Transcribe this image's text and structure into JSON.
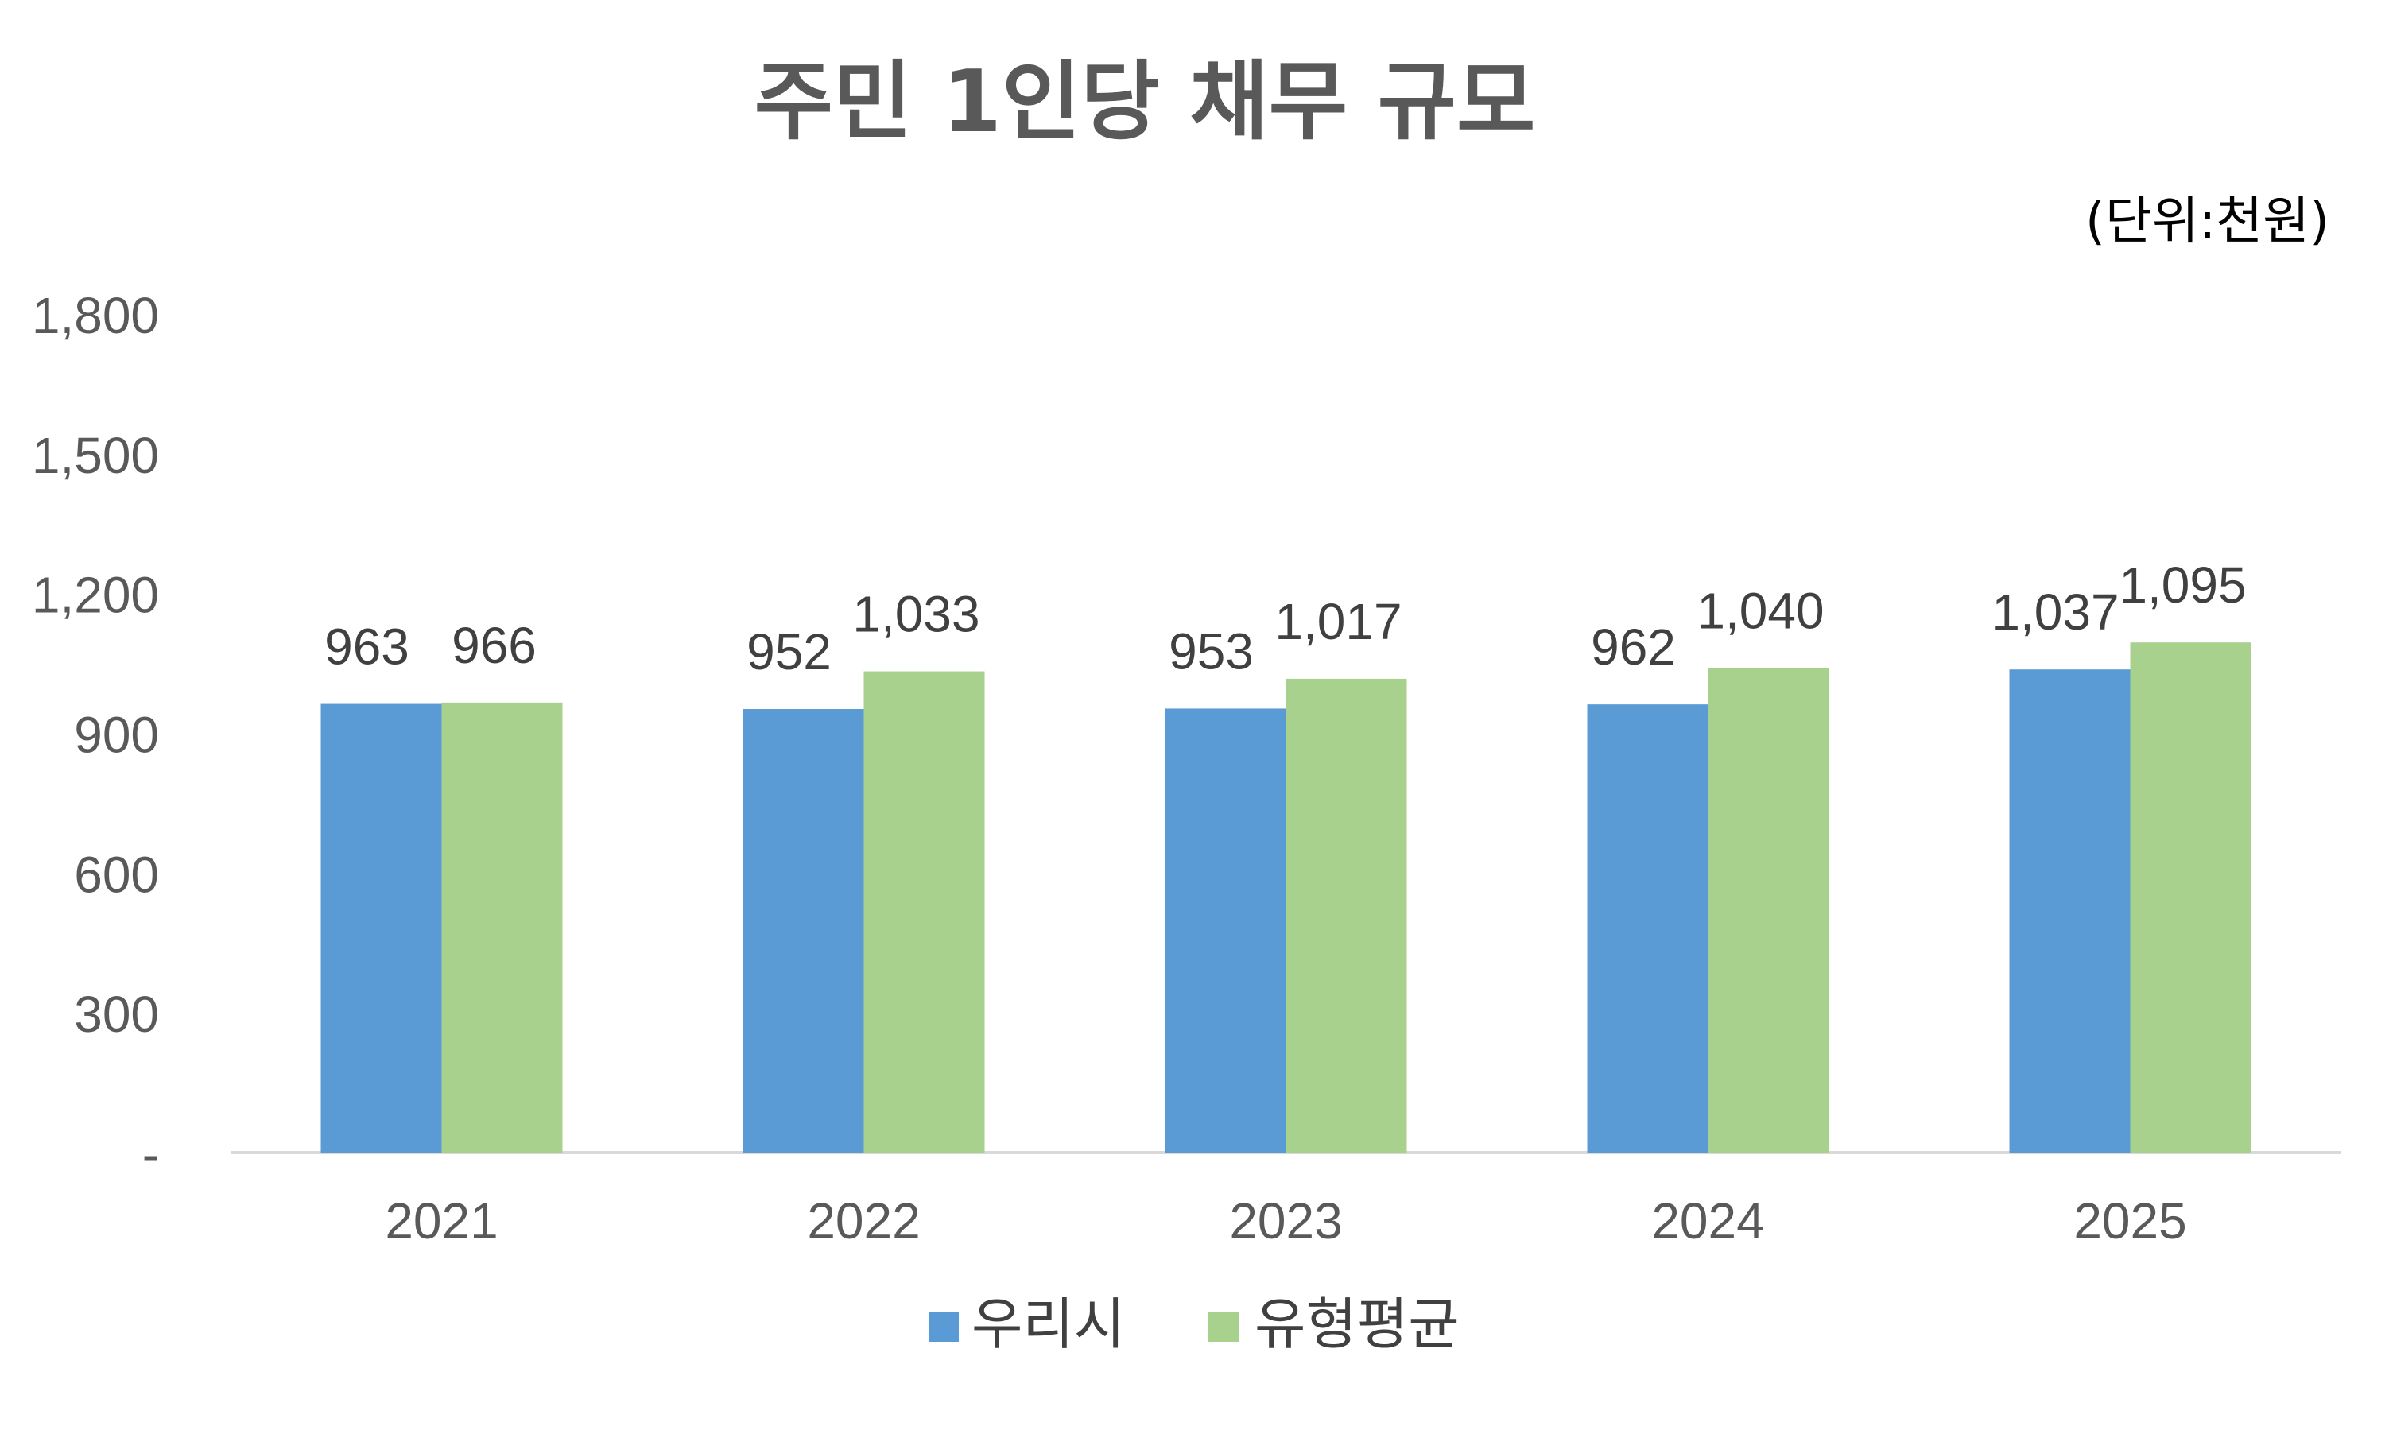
{
  "chart_data": {
    "type": "bar",
    "title": "주민 1인당 채무 규모",
    "unit_note": "(단위:천원)",
    "categories": [
      "2021",
      "2022",
      "2023",
      "2024",
      "2025"
    ],
    "series": [
      {
        "name": "우리시",
        "color": "#5B9BD5",
        "values": [
          963,
          952,
          953,
          962,
          1037
        ],
        "value_labels": [
          "963",
          "952",
          "953",
          "962",
          "1,037"
        ]
      },
      {
        "name": "유형평균",
        "color": "#A9D18E",
        "values": [
          966,
          1033,
          1017,
          1040,
          1095
        ],
        "value_labels": [
          "966",
          "1,033",
          "1,017",
          "1,040",
          "1,095"
        ]
      }
    ],
    "ylim": [
      0,
      1800
    ],
    "y_ticks": [
      0,
      300,
      600,
      900,
      1200,
      1500,
      1800
    ],
    "y_tick_labels": [
      "-",
      "300",
      "600",
      "900",
      "1,200",
      "1,500",
      "1,800"
    ],
    "xlabel": "",
    "ylabel": "",
    "grid": false,
    "legend_position": "bottom-center"
  }
}
